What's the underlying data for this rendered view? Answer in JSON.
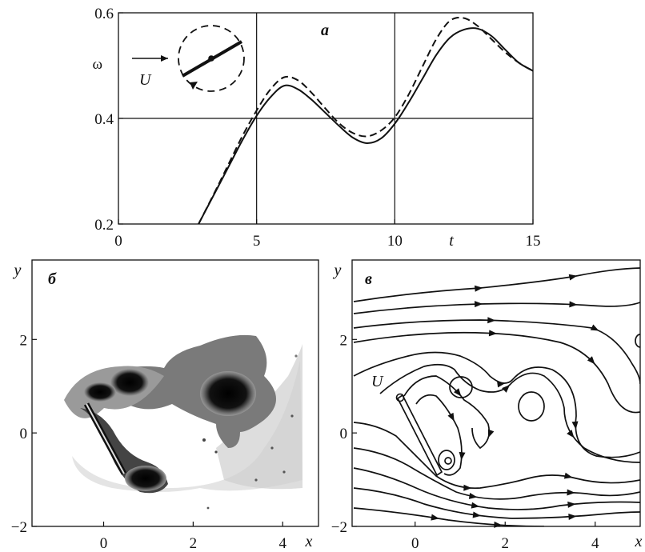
{
  "figure": {
    "panel_a": {
      "letter": "a",
      "y_label": "ω",
      "x_label": "t",
      "flow_label": "U",
      "x_ticks": [
        "0",
        "5",
        "10",
        "15"
      ],
      "y_ticks": [
        "0.2",
        "0.4",
        "0.6"
      ]
    },
    "panel_b": {
      "letter": "б",
      "y_label": "y",
      "x_label": "x",
      "x_ticks": [
        "0",
        "2",
        "4"
      ],
      "y_ticks": [
        "−2",
        "0",
        "2"
      ]
    },
    "panel_c": {
      "letter": "в",
      "y_label": "y",
      "x_label": "x",
      "flow_label": "U",
      "x_ticks": [
        "0",
        "2",
        "4"
      ],
      "y_ticks": [
        "−2",
        "0",
        "2"
      ]
    }
  },
  "chart_data": [
    {
      "type": "line",
      "panel": "a",
      "xlabel": "t",
      "ylabel": "ω",
      "xlim": [
        0,
        15
      ],
      "ylim": [
        0.2,
        0.6
      ],
      "grid_x": [
        5,
        10
      ],
      "grid_y": [
        0.4
      ],
      "series": [
        {
          "style": "solid",
          "x": [
            2.9,
            3.5,
            4.0,
            4.5,
            5.0,
            5.5,
            6.0,
            6.5,
            7.0,
            7.5,
            8.0,
            8.5,
            9.0,
            9.5,
            10.0,
            10.5,
            11.0,
            11.5,
            12.0,
            12.5,
            13.0,
            13.5,
            14.0,
            14.5,
            15.0
          ],
          "y": [
            0.2,
            0.26,
            0.31,
            0.36,
            0.405,
            0.44,
            0.462,
            0.455,
            0.435,
            0.41,
            0.385,
            0.363,
            0.353,
            0.362,
            0.39,
            0.43,
            0.475,
            0.52,
            0.553,
            0.568,
            0.57,
            0.556,
            0.53,
            0.505,
            0.49
          ]
        },
        {
          "style": "dashed",
          "x": [
            2.9,
            3.5,
            4.0,
            4.5,
            5.0,
            5.5,
            6.0,
            6.5,
            7.0,
            7.5,
            8.0,
            8.5,
            9.0,
            9.5,
            10.0,
            10.5,
            11.0,
            11.5,
            12.0,
            12.5,
            13.0,
            13.5,
            14.0,
            14.5,
            15.0
          ],
          "y": [
            0.2,
            0.262,
            0.315,
            0.368,
            0.415,
            0.455,
            0.478,
            0.472,
            0.448,
            0.418,
            0.39,
            0.372,
            0.366,
            0.377,
            0.402,
            0.445,
            0.498,
            0.55,
            0.585,
            0.59,
            0.575,
            0.55,
            0.525,
            0.505,
            0.49
          ]
        }
      ]
    },
    {
      "type": "heatmap",
      "panel": "б",
      "xlabel": "x",
      "ylabel": "y",
      "xlim": [
        -1.6,
        4.8
      ],
      "ylim": [
        -2,
        3.7
      ]
    },
    {
      "type": "line",
      "panel": "в",
      "xlabel": "x",
      "ylabel": "y",
      "xlim": [
        -1.4,
        5
      ],
      "ylim": [
        -2,
        3.7
      ]
    }
  ]
}
